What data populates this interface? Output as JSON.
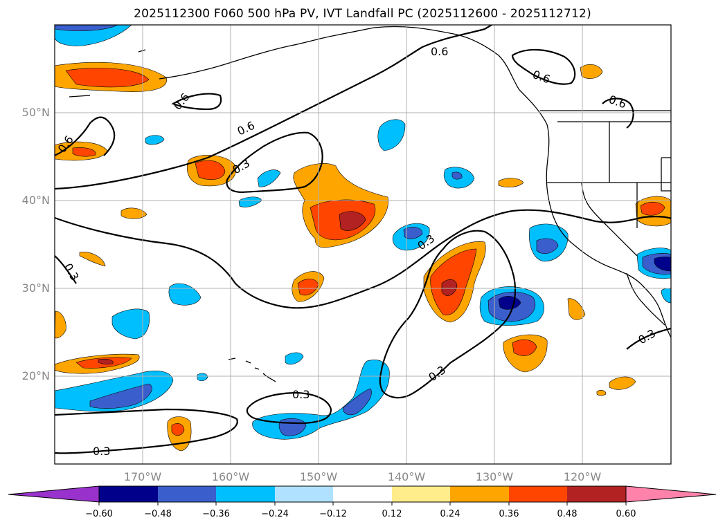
{
  "title": "2025112300 F060 500 hPa PV, IVT Landfall PC (2025112600 - 2025112712)",
  "axes": {
    "lat_labels": [
      "50°N",
      "40°N",
      "30°N",
      "20°N"
    ],
    "lon_labels": [
      "170°W",
      "160°W",
      "150°W",
      "140°W",
      "130°W",
      "120°W"
    ]
  },
  "contour_labels": [
    "0.6",
    "0.6",
    "0.6",
    "0.6",
    "0.6",
    "0.6",
    "0.3",
    "0.3",
    "0.3",
    "0.3",
    "0.3",
    "0.3",
    "0.3",
    "0.6"
  ],
  "colorbar": {
    "ticks": [
      "−0.60",
      "−0.48",
      "−0.36",
      "−0.24",
      "−0.12",
      "0.12",
      "0.24",
      "0.36",
      "0.48",
      "0.60"
    ],
    "colors": [
      "#9932cc",
      "#00008b",
      "#3a5fcd",
      "#00bfff",
      "#b0e2ff",
      "#ffffff",
      "#ffec8b",
      "#ffa500",
      "#ff4500",
      "#b22222",
      "#ff82ab"
    ]
  },
  "fill_colors": {
    "pos1": "#ffa500",
    "pos2": "#ff4500",
    "pos3": "#b22222",
    "neg1": "#00bfff",
    "neg2": "#3a5fcd",
    "neg3": "#00008b"
  }
}
